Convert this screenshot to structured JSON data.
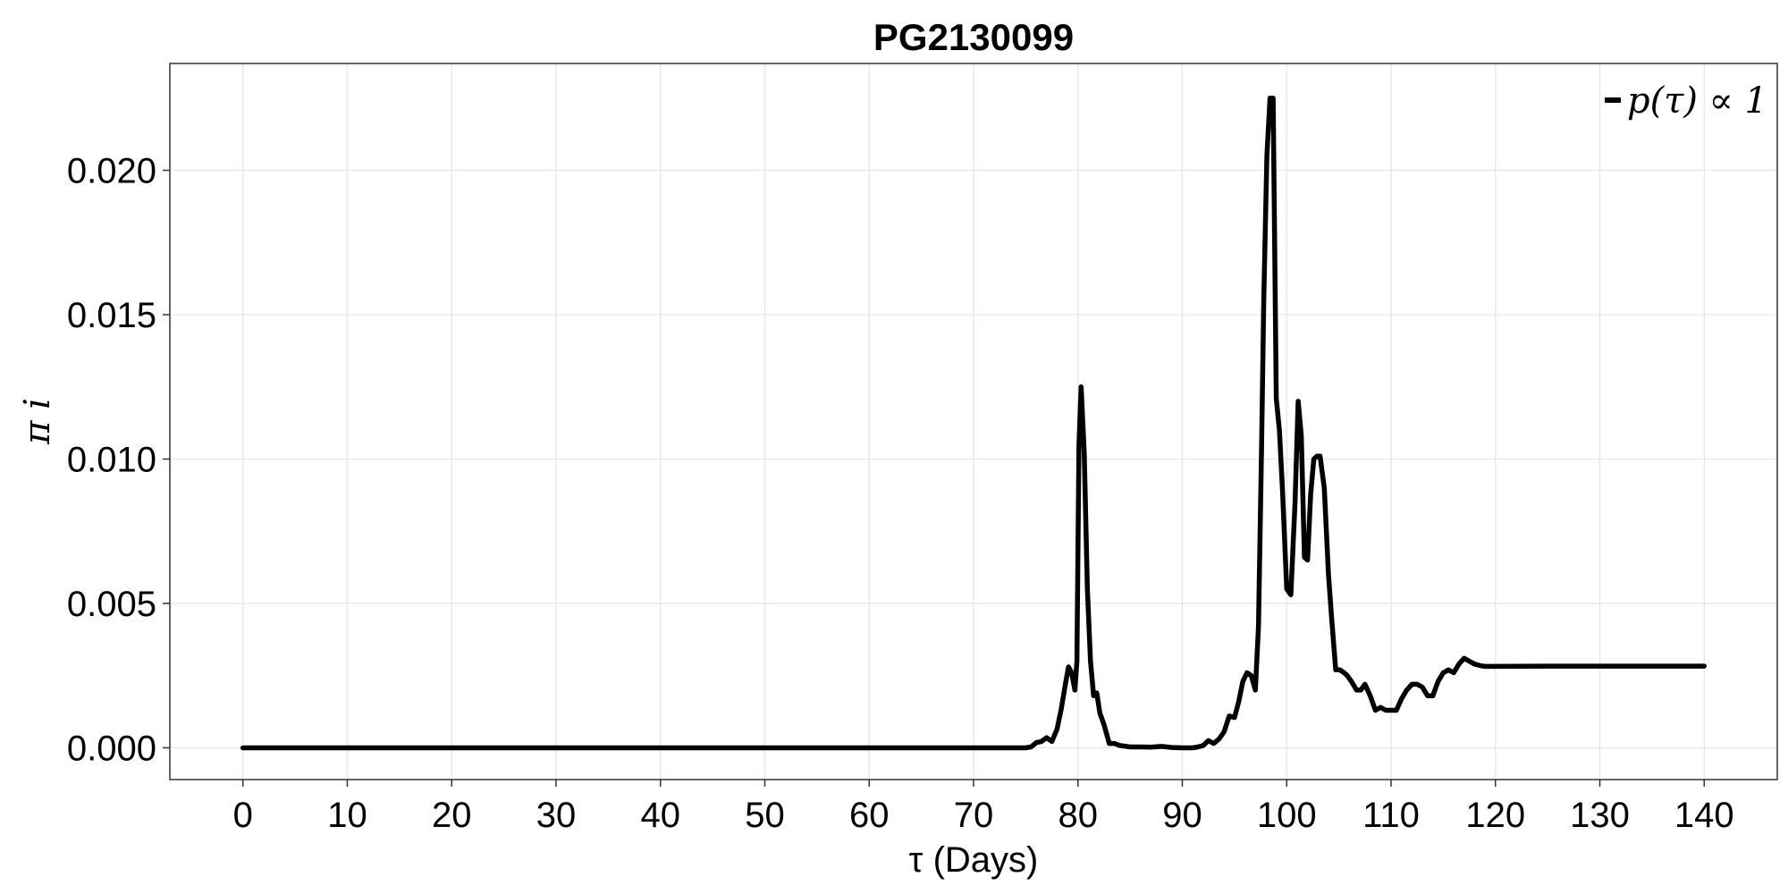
{
  "chart_data": {
    "type": "line",
    "title": "PG2130099",
    "xlabel": "τ (Days)",
    "ylabel": "π i",
    "xlim": [
      -7,
      147
    ],
    "ylim": [
      -0.0011,
      0.0237
    ],
    "xticks": [
      0,
      10,
      20,
      30,
      40,
      50,
      60,
      70,
      80,
      90,
      100,
      110,
      120,
      130,
      140
    ],
    "xtick_labels": [
      "0",
      "10",
      "20",
      "30",
      "40",
      "50",
      "60",
      "70",
      "80",
      "90",
      "100",
      "110",
      "120",
      "130",
      "140"
    ],
    "yticks": [
      0.0,
      0.005,
      0.01,
      0.015,
      0.02
    ],
    "ytick_labels": [
      "0.000",
      "0.005",
      "0.010",
      "0.015",
      "0.020"
    ],
    "grid": true,
    "legend_position": "top-right",
    "series": [
      {
        "name": "p(τ) ∝ 1",
        "color": "#000000",
        "x": [
          0,
          10,
          20,
          30,
          40,
          50,
          60,
          70,
          75,
          75.5,
          76,
          76.5,
          77,
          77.5,
          78,
          78.4,
          78.8,
          79.1,
          79.4,
          79.7,
          79.9,
          80.1,
          80.3,
          80.6,
          80.9,
          81.2,
          81.5,
          81.8,
          82.1,
          82.5,
          83,
          83.5,
          84,
          85,
          86,
          87,
          88,
          89,
          90,
          91,
          91.5,
          92,
          92.5,
          93,
          93.5,
          94,
          94.5,
          95,
          95.4,
          95.8,
          96.2,
          96.6,
          97,
          97.3,
          97.6,
          97.8,
          98.1,
          98.4,
          98.7,
          99,
          99.3,
          99.6,
          100,
          100.4,
          100.8,
          101.1,
          101.4,
          101.7,
          102,
          102.3,
          102.6,
          102.9,
          103.2,
          103.6,
          104,
          104.3,
          104.7,
          105.1,
          105.5,
          105.8,
          106.2,
          106.7,
          107.1,
          107.5,
          108,
          108.5,
          109,
          109.5,
          110,
          110.5,
          111,
          111.5,
          112,
          112.5,
          113,
          113.5,
          114,
          114.5,
          115,
          115.5,
          116,
          116.5,
          117,
          117.5,
          118,
          118.5,
          119,
          119.5,
          120,
          125,
          130,
          135,
          140
        ],
        "y": [
          0.0,
          0.0,
          0.0,
          0.0,
          0.0,
          0.0,
          0.0,
          0.0,
          0.0,
          3e-05,
          0.00018,
          0.00022,
          0.00035,
          0.00022,
          0.00065,
          0.00135,
          0.0022,
          0.0028,
          0.0026,
          0.002,
          0.003,
          0.0105,
          0.0125,
          0.0102,
          0.0055,
          0.003,
          0.0018,
          0.0019,
          0.0012,
          0.0008,
          0.00015,
          0.00015,
          8e-05,
          3e-05,
          3e-05,
          2e-05,
          5e-05,
          1e-05,
          0.0,
          0.0,
          3e-05,
          8e-05,
          0.00025,
          0.00015,
          0.0003,
          0.00055,
          0.0011,
          0.00105,
          0.0016,
          0.0023,
          0.0026,
          0.0025,
          0.002,
          0.0042,
          0.0105,
          0.0155,
          0.0205,
          0.0225,
          0.0225,
          0.0121,
          0.011,
          0.0089,
          0.0055,
          0.0053,
          0.0085,
          0.012,
          0.0108,
          0.0066,
          0.0065,
          0.0088,
          0.01,
          0.0101,
          0.0101,
          0.009,
          0.006,
          0.0045,
          0.0027,
          0.0027,
          0.0026,
          0.0025,
          0.0023,
          0.002,
          0.002,
          0.0022,
          0.0018,
          0.0013,
          0.0014,
          0.0013,
          0.0013,
          0.0013,
          0.0017,
          0.002,
          0.0022,
          0.0022,
          0.0021,
          0.0018,
          0.0018,
          0.0023,
          0.0026,
          0.0027,
          0.0026,
          0.0029,
          0.0031,
          0.003,
          0.0029,
          0.00285,
          0.00282,
          0.00282,
          0.00282,
          0.00283,
          0.00283,
          0.00283,
          0.00283
        ]
      }
    ]
  }
}
